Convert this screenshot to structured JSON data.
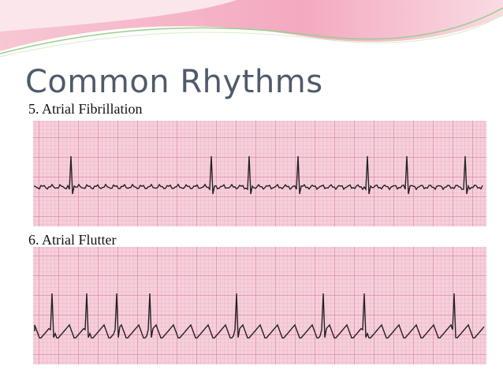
{
  "slide": {
    "title": "Common Rhythms",
    "sections": [
      {
        "label": "5. Atrial Fibrillation"
      },
      {
        "label": "6. Atrial Flutter"
      }
    ]
  }
}
